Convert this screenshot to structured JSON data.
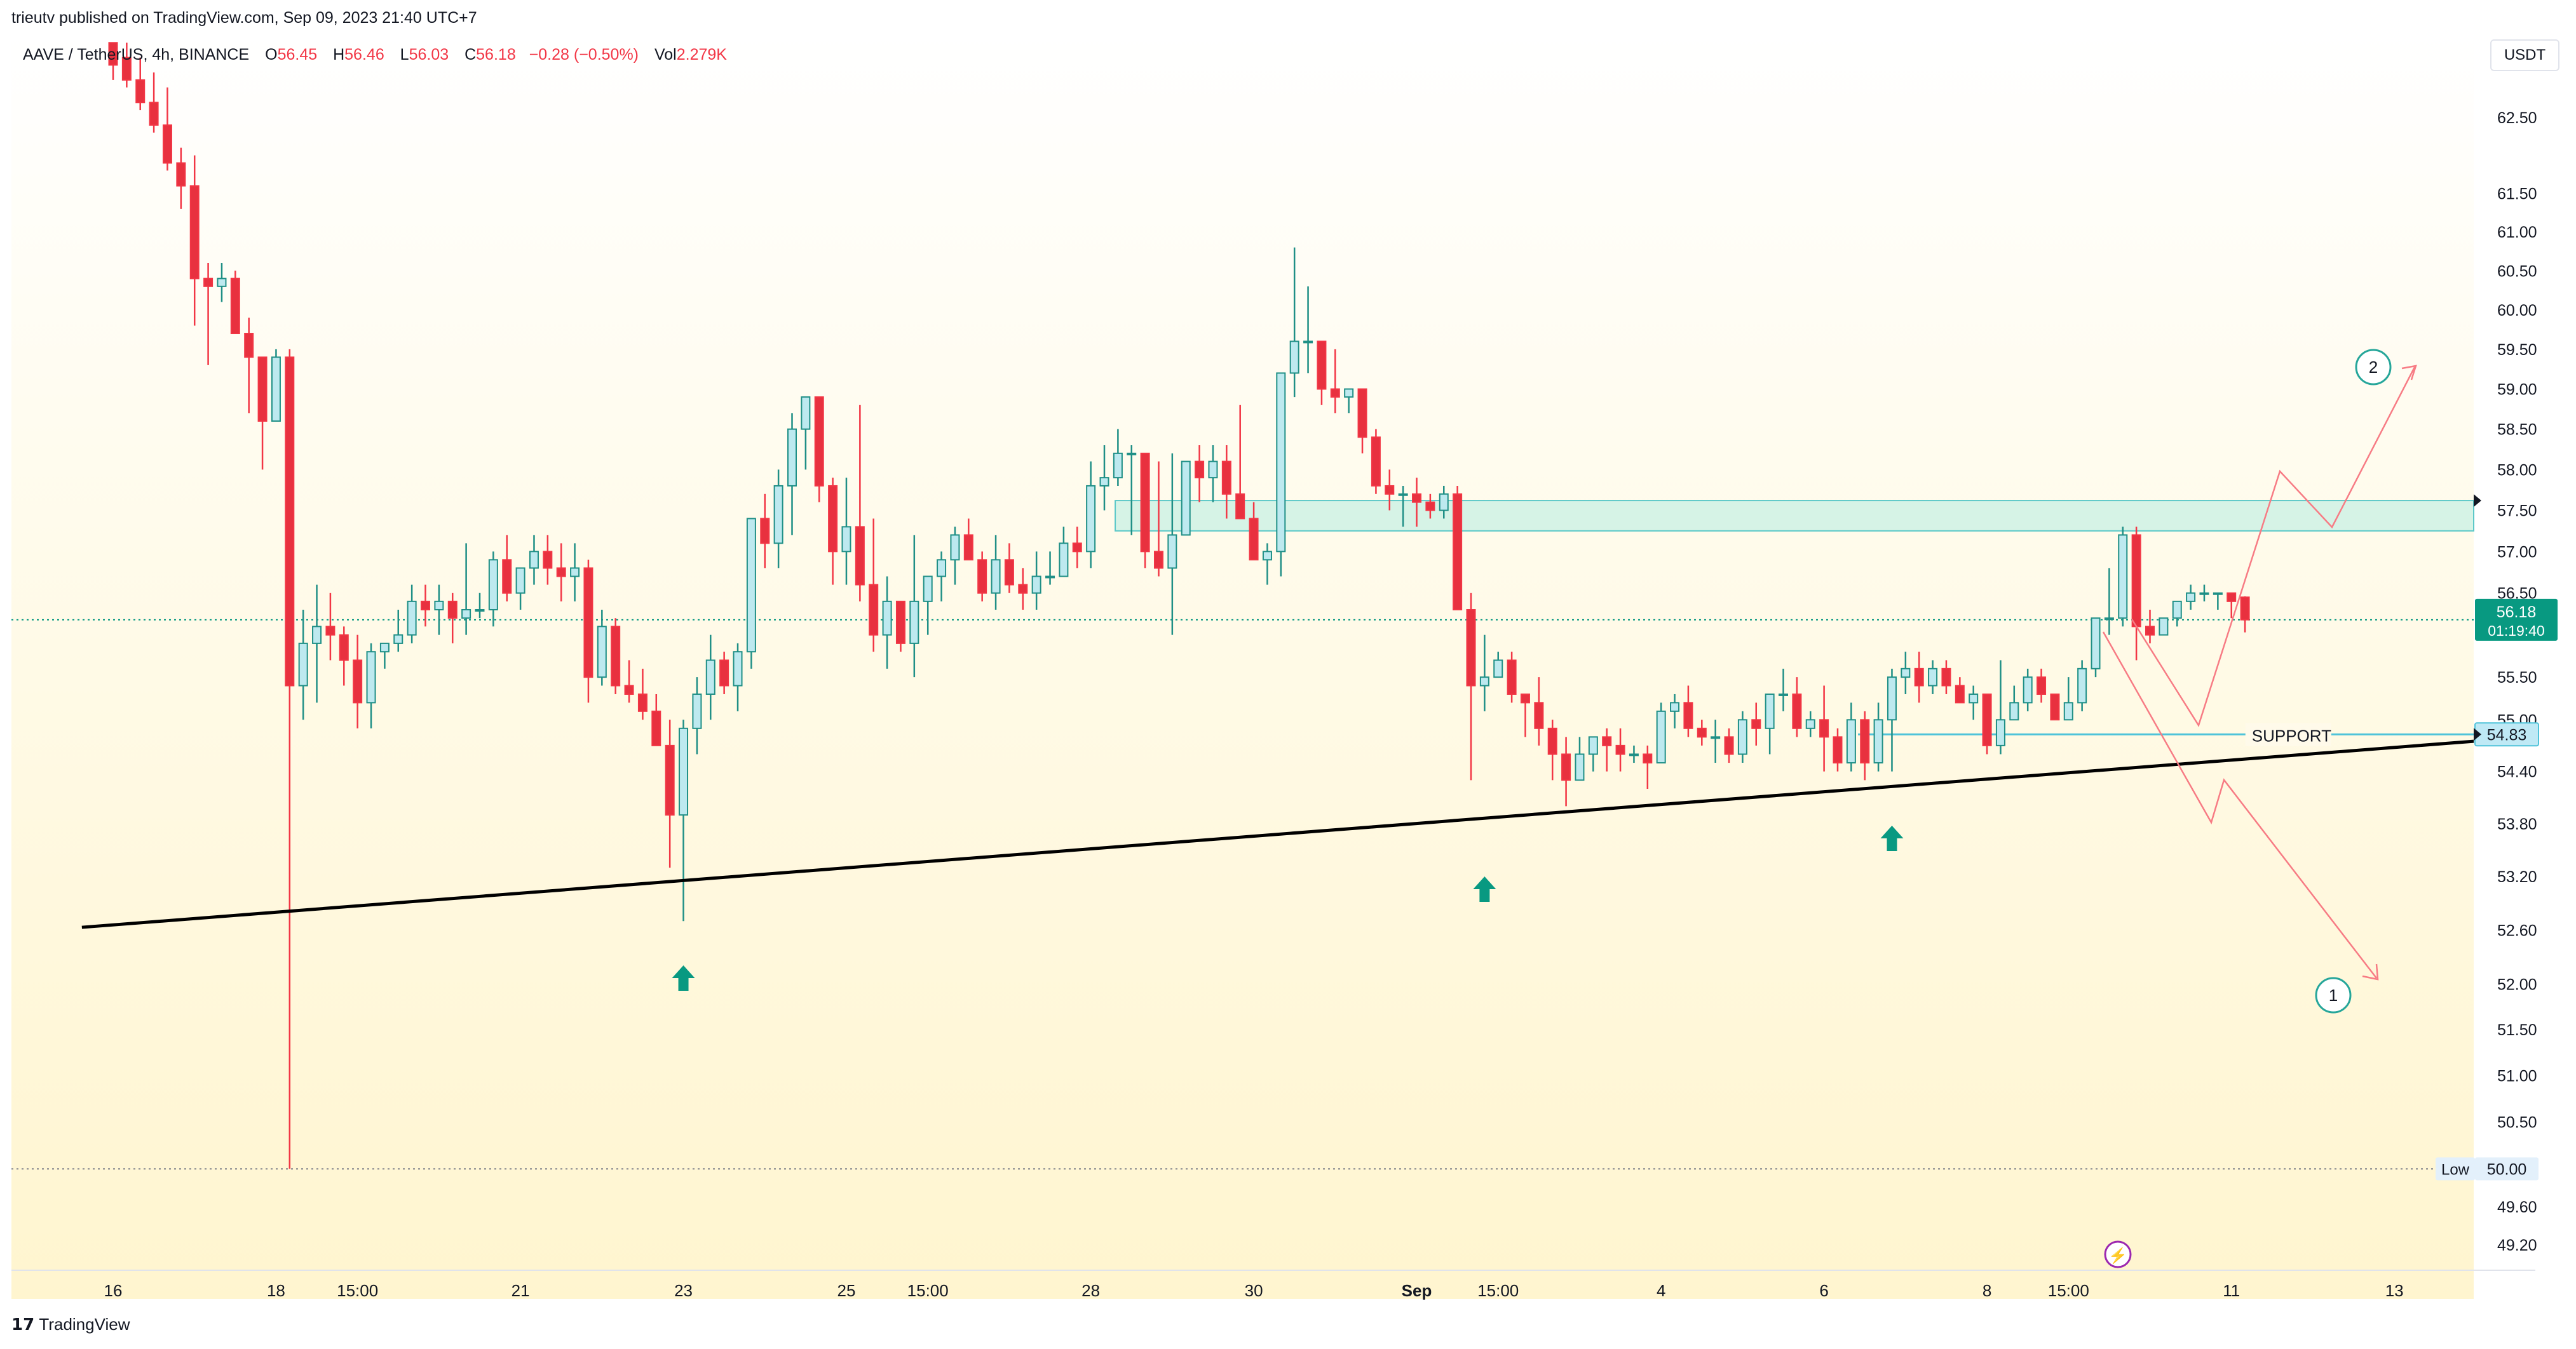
{
  "header": {
    "publisher": "trieutv published on TradingView.com, Sep 09, 2023 21:40 UTC+7"
  },
  "legend": {
    "symbol": "AAVE / TetherUS, 4h, BINANCE",
    "open_label": "O",
    "open": "56.45",
    "high_label": "H",
    "high": "56.46",
    "low_label": "L",
    "low": "56.03",
    "close_label": "C",
    "close": "56.18",
    "change": "−0.28 (−0.50%)",
    "vol_label": "Vol",
    "vol": "2.279K"
  },
  "currency": "USDT",
  "footer": {
    "brand": "TradingView"
  },
  "colors": {
    "up": "#26a69a",
    "up_fill": "#bde9ef",
    "down": "#f23645",
    "down_fill": "#e8313f",
    "zone": "#d6f3e6",
    "accent": "#089981"
  },
  "chart_data": {
    "type": "candlestick",
    "title": "AAVE / TetherUS, 4h, BINANCE",
    "y_axis": {
      "scale": "log",
      "range": [
        48.91,
        63.51
      ],
      "ticks": [
        62.5,
        61.5,
        61.0,
        60.5,
        60.0,
        59.5,
        59.0,
        58.5,
        58.0,
        57.5,
        57.0,
        56.5,
        55.5,
        55.0,
        54.4,
        53.8,
        53.2,
        52.6,
        52.0,
        51.5,
        51.0,
        50.5,
        49.6,
        49.2
      ],
      "tick_labels": [
        "62.50",
        "61.50",
        "61.00",
        "60.50",
        "60.00",
        "59.50",
        "59.00",
        "58.50",
        "58.00",
        "57.50",
        "57.00",
        "56.50",
        "55.50",
        "55.00",
        "54.40",
        "53.80",
        "53.20",
        "52.60",
        "52.00",
        "51.50",
        "51.00",
        "50.50",
        "49.60",
        "49.20"
      ]
    },
    "x_axis": {
      "labels": [
        "16",
        "18",
        "15:00",
        "21",
        "23",
        "25",
        "15:00",
        "28",
        "30",
        "Sep",
        "15:00",
        "4",
        "6",
        "8",
        "15:00",
        "11",
        "13"
      ],
      "label_bar_index": [
        0,
        12,
        18,
        30,
        42,
        54,
        60,
        72,
        84,
        96,
        102,
        114,
        126,
        138,
        144,
        156,
        168
      ]
    },
    "ohlc": [
      [
        63.5,
        63.5,
        63.0,
        63.2
      ],
      [
        63.3,
        63.5,
        62.9,
        63.0
      ],
      [
        63.0,
        63.3,
        62.6,
        62.7
      ],
      [
        62.7,
        63.1,
        62.3,
        62.4
      ],
      [
        62.4,
        62.9,
        61.8,
        61.9
      ],
      [
        61.9,
        62.1,
        61.3,
        61.6
      ],
      [
        61.6,
        62.0,
        59.8,
        60.4
      ],
      [
        60.4,
        60.6,
        59.3,
        60.3
      ],
      [
        60.3,
        60.6,
        60.1,
        60.4
      ],
      [
        60.4,
        60.5,
        59.7,
        59.7
      ],
      [
        59.7,
        59.9,
        58.7,
        59.4
      ],
      [
        59.4,
        59.4,
        58.0,
        58.6
      ],
      [
        58.6,
        59.5,
        58.6,
        59.4
      ],
      [
        59.4,
        59.5,
        50.0,
        55.4
      ],
      [
        55.4,
        56.3,
        55.0,
        55.9
      ],
      [
        55.9,
        56.6,
        55.2,
        56.1
      ],
      [
        56.1,
        56.5,
        55.7,
        56.0
      ],
      [
        56.0,
        56.1,
        55.4,
        55.7
      ],
      [
        55.7,
        56.0,
        54.9,
        55.2
      ],
      [
        55.2,
        55.9,
        54.9,
        55.8
      ],
      [
        55.8,
        55.9,
        55.6,
        55.9
      ],
      [
        55.9,
        56.3,
        55.8,
        56.0
      ],
      [
        56.0,
        56.6,
        55.9,
        56.4
      ],
      [
        56.4,
        56.6,
        56.1,
        56.3
      ],
      [
        56.3,
        56.6,
        56.0,
        56.4
      ],
      [
        56.4,
        56.5,
        55.9,
        56.2
      ],
      [
        56.2,
        57.1,
        56.0,
        56.3
      ],
      [
        56.3,
        56.5,
        56.2,
        56.3
      ],
      [
        56.3,
        57.0,
        56.1,
        56.9
      ],
      [
        56.9,
        57.2,
        56.4,
        56.5
      ],
      [
        56.5,
        56.8,
        56.3,
        56.8
      ],
      [
        56.8,
        57.2,
        56.6,
        57.0
      ],
      [
        57.0,
        57.2,
        56.6,
        56.8
      ],
      [
        56.8,
        57.1,
        56.4,
        56.7
      ],
      [
        56.7,
        57.1,
        56.4,
        56.8
      ],
      [
        56.8,
        56.9,
        55.2,
        55.5
      ],
      [
        55.5,
        56.3,
        55.4,
        56.1
      ],
      [
        56.1,
        56.2,
        55.3,
        55.4
      ],
      [
        55.4,
        55.7,
        55.2,
        55.3
      ],
      [
        55.3,
        55.6,
        55.0,
        55.1
      ],
      [
        55.1,
        55.3,
        54.7,
        54.7
      ],
      [
        54.7,
        55.0,
        53.3,
        53.9
      ],
      [
        53.9,
        55.0,
        52.7,
        54.9
      ],
      [
        54.9,
        55.5,
        54.6,
        55.3
      ],
      [
        55.3,
        56.0,
        55.0,
        55.7
      ],
      [
        55.7,
        55.8,
        55.3,
        55.4
      ],
      [
        55.4,
        55.9,
        55.1,
        55.8
      ],
      [
        55.8,
        57.4,
        55.6,
        57.4
      ],
      [
        57.4,
        57.7,
        56.8,
        57.1
      ],
      [
        57.1,
        58.0,
        56.8,
        57.8
      ],
      [
        57.8,
        58.7,
        57.2,
        58.5
      ],
      [
        58.5,
        58.9,
        58.0,
        58.9
      ],
      [
        58.9,
        58.9,
        57.6,
        57.8
      ],
      [
        57.8,
        57.9,
        56.6,
        57.0
      ],
      [
        57.0,
        57.9,
        56.6,
        57.3
      ],
      [
        57.3,
        58.8,
        56.4,
        56.6
      ],
      [
        56.6,
        57.4,
        55.8,
        56.0
      ],
      [
        56.0,
        56.7,
        55.6,
        56.4
      ],
      [
        56.4,
        56.4,
        55.8,
        55.9
      ],
      [
        55.9,
        57.2,
        55.5,
        56.4
      ],
      [
        56.4,
        56.7,
        56.0,
        56.7
      ],
      [
        56.7,
        57.0,
        56.4,
        56.9
      ],
      [
        56.9,
        57.3,
        56.6,
        57.2
      ],
      [
        57.2,
        57.4,
        56.9,
        56.9
      ],
      [
        56.9,
        57.0,
        56.4,
        56.5
      ],
      [
        56.5,
        57.2,
        56.3,
        56.9
      ],
      [
        56.9,
        57.1,
        56.5,
        56.6
      ],
      [
        56.6,
        56.8,
        56.3,
        56.5
      ],
      [
        56.5,
        57.0,
        56.3,
        56.7
      ],
      [
        56.7,
        57.0,
        56.6,
        56.7
      ],
      [
        56.7,
        57.3,
        56.7,
        57.1
      ],
      [
        57.1,
        57.3,
        56.8,
        57.0
      ],
      [
        57.0,
        58.1,
        56.8,
        57.8
      ],
      [
        57.8,
        58.3,
        57.5,
        57.9
      ],
      [
        57.9,
        58.5,
        57.8,
        58.2
      ],
      [
        58.2,
        58.3,
        57.2,
        58.2
      ],
      [
        58.2,
        58.2,
        56.8,
        57.0
      ],
      [
        57.0,
        58.1,
        56.7,
        56.8
      ],
      [
        56.8,
        58.2,
        56.0,
        57.2
      ],
      [
        57.2,
        58.1,
        57.2,
        58.1
      ],
      [
        58.1,
        58.3,
        57.6,
        57.9
      ],
      [
        57.9,
        58.3,
        57.6,
        58.1
      ],
      [
        58.1,
        58.3,
        57.4,
        57.7
      ],
      [
        57.7,
        58.8,
        57.4,
        57.4
      ],
      [
        57.4,
        57.6,
        56.9,
        56.9
      ],
      [
        56.9,
        57.1,
        56.6,
        57.0
      ],
      [
        57.0,
        59.2,
        56.7,
        59.2
      ],
      [
        59.2,
        60.8,
        58.9,
        59.6
      ],
      [
        59.6,
        60.3,
        59.2,
        59.6
      ],
      [
        59.6,
        59.6,
        58.8,
        59.0
      ],
      [
        59.0,
        59.5,
        58.7,
        58.9
      ],
      [
        58.9,
        59.0,
        58.7,
        59.0
      ],
      [
        59.0,
        59.0,
        58.2,
        58.4
      ],
      [
        58.4,
        58.5,
        57.7,
        57.8
      ],
      [
        57.8,
        58.0,
        57.5,
        57.7
      ],
      [
        57.7,
        57.8,
        57.3,
        57.7
      ],
      [
        57.7,
        57.9,
        57.3,
        57.6
      ],
      [
        57.6,
        57.7,
        57.4,
        57.5
      ],
      [
        57.5,
        57.8,
        57.4,
        57.7
      ],
      [
        57.7,
        57.8,
        56.3,
        56.3
      ],
      [
        56.3,
        56.5,
        54.3,
        55.4
      ],
      [
        55.4,
        56.0,
        55.1,
        55.5
      ],
      [
        55.5,
        55.8,
        55.5,
        55.7
      ],
      [
        55.7,
        55.8,
        55.2,
        55.3
      ],
      [
        55.3,
        55.3,
        54.8,
        55.2
      ],
      [
        55.2,
        55.5,
        54.7,
        54.9
      ],
      [
        54.9,
        55.0,
        54.3,
        54.6
      ],
      [
        54.6,
        54.8,
        54.0,
        54.3
      ],
      [
        54.3,
        54.8,
        54.3,
        54.6
      ],
      [
        54.6,
        54.8,
        54.4,
        54.8
      ],
      [
        54.8,
        54.9,
        54.4,
        54.7
      ],
      [
        54.7,
        54.9,
        54.4,
        54.6
      ],
      [
        54.6,
        54.7,
        54.5,
        54.6
      ],
      [
        54.6,
        54.7,
        54.2,
        54.5
      ],
      [
        54.5,
        55.2,
        54.5,
        55.1
      ],
      [
        55.1,
        55.3,
        54.9,
        55.2
      ],
      [
        55.2,
        55.4,
        54.8,
        54.9
      ],
      [
        54.9,
        55.0,
        54.7,
        54.8
      ],
      [
        54.8,
        55.0,
        54.5,
        54.8
      ],
      [
        54.8,
        54.9,
        54.5,
        54.6
      ],
      [
        54.6,
        55.1,
        54.5,
        55.0
      ],
      [
        55.0,
        55.2,
        54.7,
        54.9
      ],
      [
        54.9,
        55.3,
        54.6,
        55.3
      ],
      [
        55.3,
        55.6,
        55.1,
        55.3
      ],
      [
        55.3,
        55.5,
        54.8,
        54.9
      ],
      [
        54.9,
        55.1,
        54.8,
        55.0
      ],
      [
        55.0,
        55.4,
        54.4,
        54.8
      ],
      [
        54.8,
        54.9,
        54.4,
        54.5
      ],
      [
        54.5,
        55.2,
        54.4,
        55.0
      ],
      [
        55.0,
        55.1,
        54.3,
        54.5
      ],
      [
        54.5,
        55.2,
        54.4,
        55.0
      ],
      [
        55.0,
        55.6,
        54.4,
        55.5
      ],
      [
        55.5,
        55.8,
        55.3,
        55.6
      ],
      [
        55.6,
        55.8,
        55.2,
        55.4
      ],
      [
        55.4,
        55.7,
        55.3,
        55.6
      ],
      [
        55.6,
        55.7,
        55.3,
        55.4
      ],
      [
        55.4,
        55.5,
        55.2,
        55.2
      ],
      [
        55.2,
        55.4,
        55.0,
        55.3
      ],
      [
        55.3,
        55.3,
        54.6,
        54.7
      ],
      [
        54.7,
        55.7,
        54.6,
        55.0
      ],
      [
        55.0,
        55.4,
        55.0,
        55.2
      ],
      [
        55.2,
        55.6,
        55.1,
        55.5
      ],
      [
        55.5,
        55.6,
        55.2,
        55.3
      ],
      [
        55.3,
        55.3,
        55.0,
        55.0
      ],
      [
        55.0,
        55.5,
        55.0,
        55.2
      ],
      [
        55.2,
        55.7,
        55.1,
        55.6
      ],
      [
        55.6,
        56.2,
        55.5,
        56.2
      ],
      [
        56.2,
        56.8,
        56.0,
        56.2
      ],
      [
        56.2,
        57.3,
        56.1,
        57.2
      ],
      [
        57.2,
        57.3,
        55.7,
        56.1
      ],
      [
        56.1,
        56.3,
        55.9,
        56.0
      ],
      [
        56.0,
        56.2,
        56.0,
        56.2
      ],
      [
        56.2,
        56.4,
        56.1,
        56.4
      ],
      [
        56.4,
        56.6,
        56.3,
        56.5
      ],
      [
        56.5,
        56.6,
        56.4,
        56.5
      ],
      [
        56.5,
        56.5,
        56.3,
        56.5
      ],
      [
        56.5,
        56.5,
        56.2,
        56.4
      ],
      [
        56.45,
        56.46,
        56.03,
        56.18
      ]
    ],
    "price_marks": [
      {
        "label": "56.18",
        "sub": "01:19:40",
        "value": 56.18,
        "style": "current"
      },
      {
        "label": "54.83",
        "value": 54.83,
        "style": "support"
      }
    ],
    "low_marker": {
      "label": "Low",
      "value_label": "50.00",
      "value": 50.0
    },
    "support": {
      "label": "SUPPORT",
      "value": 54.83
    },
    "resistance_zone": {
      "low": 57.25,
      "high": 57.62
    },
    "scenarios": [
      {
        "label": "1"
      },
      {
        "label": "2"
      }
    ]
  }
}
